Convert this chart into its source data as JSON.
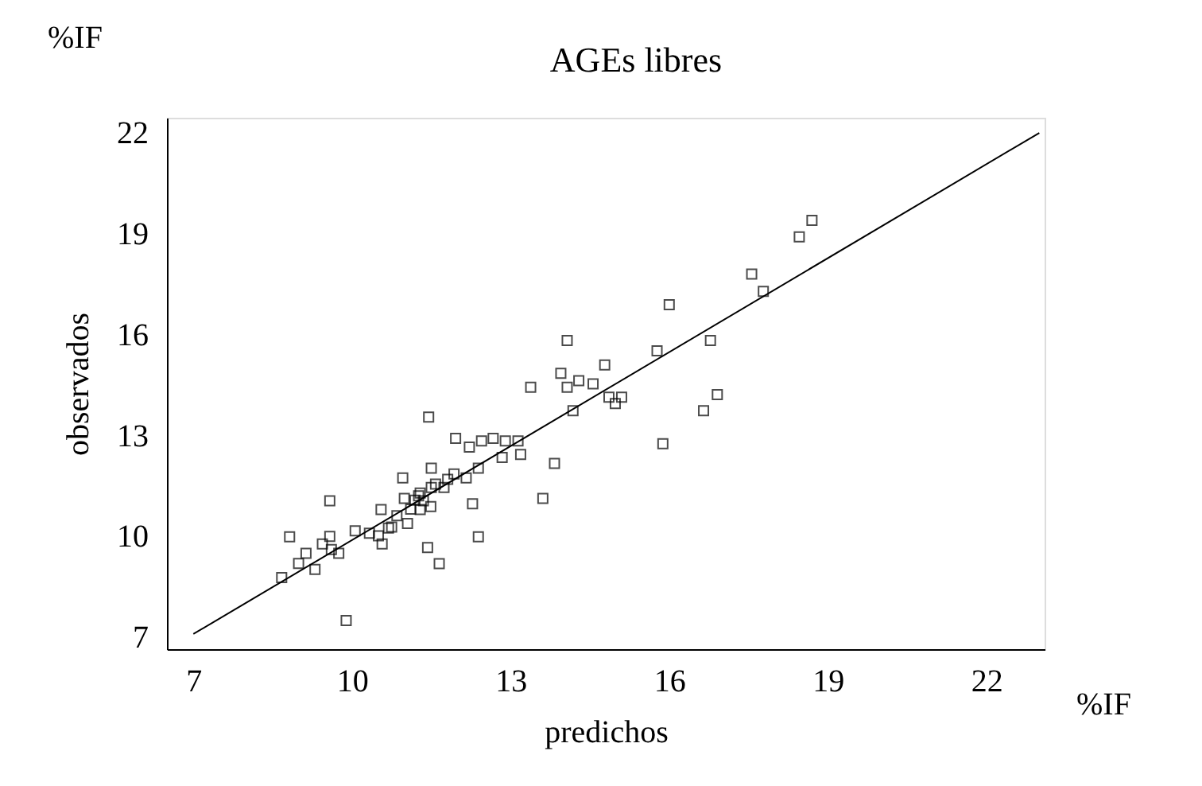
{
  "chart_data": {
    "type": "scatter",
    "title": "AGEs libres",
    "xlabel": "predichos",
    "ylabel": "observados",
    "annotations": [
      "%IF",
      "%IF"
    ],
    "xlim": [
      6.5,
      23.1
    ],
    "ylim": [
      6.65,
      22.45
    ],
    "xticks": [
      7,
      10,
      13,
      16,
      19,
      22
    ],
    "yticks": [
      7,
      10,
      13,
      16,
      19,
      22
    ],
    "grid": false,
    "marker": "square",
    "series": [
      {
        "type": "scatter",
        "color": "#000000",
        "x": [
          8.67,
          8.82,
          8.99,
          9.13,
          9.3,
          9.44,
          9.58,
          9.58,
          9.61,
          9.75,
          9.89,
          10.06,
          10.33,
          10.5,
          10.55,
          10.57,
          10.69,
          10.75,
          10.85,
          10.96,
          10.99,
          11.05,
          11.11,
          11.19,
          11.26,
          11.29,
          11.29,
          11.35,
          11.43,
          11.45,
          11.49,
          11.5,
          11.5,
          11.58,
          11.65,
          11.74,
          11.81,
          11.93,
          11.96,
          12.16,
          12.22,
          12.28,
          12.39,
          12.39,
          12.45,
          12.67,
          12.84,
          12.9,
          13.14,
          13.19,
          13.38,
          13.61,
          13.83,
          13.95,
          14.07,
          14.07,
          14.18,
          14.29,
          14.56,
          14.78,
          14.86,
          14.98,
          15.1,
          15.77,
          15.88,
          16.0,
          16.65,
          16.78,
          16.91,
          17.56,
          17.78,
          18.46,
          18.7
        ],
        "values": [
          8.78,
          9.99,
          9.2,
          9.5,
          9.02,
          9.78,
          11.06,
          10.0,
          9.61,
          9.5,
          7.5,
          10.17,
          10.1,
          10.02,
          10.8,
          9.78,
          10.25,
          10.28,
          10.62,
          11.74,
          11.13,
          10.39,
          10.81,
          11.08,
          11.21,
          11.29,
          10.8,
          11.06,
          9.67,
          13.55,
          10.89,
          12.03,
          11.46,
          11.56,
          9.19,
          11.46,
          11.7,
          11.86,
          12.92,
          11.74,
          12.66,
          10.97,
          9.99,
          12.03,
          12.84,
          12.92,
          12.35,
          12.84,
          12.84,
          12.44,
          14.44,
          11.13,
          12.17,
          14.85,
          15.83,
          14.44,
          13.74,
          14.63,
          14.54,
          15.1,
          14.14,
          13.95,
          14.14,
          15.52,
          12.76,
          16.89,
          13.74,
          15.83,
          14.22,
          17.8,
          17.29,
          18.91,
          19.4
        ]
      },
      {
        "type": "line",
        "color": "#000000",
        "x": [
          7.0,
          23.0
        ],
        "values": [
          7.1,
          22.0
        ],
        "line_style": "solid",
        "marker": "none"
      }
    ]
  }
}
